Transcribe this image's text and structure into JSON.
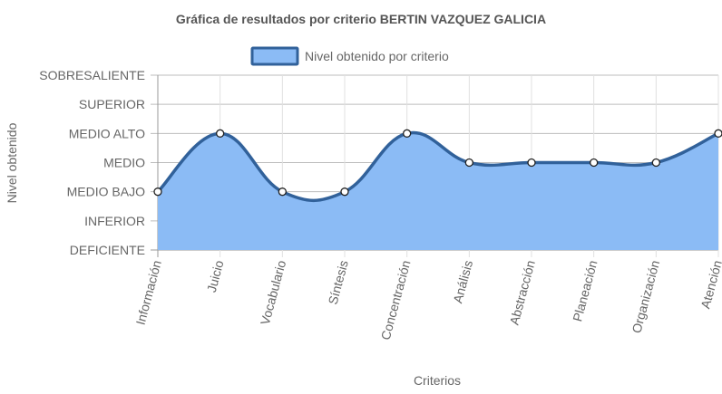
{
  "chart_data": {
    "type": "area",
    "title": "Gráfica de resultados por criterio BERTIN VAZQUEZ GALICIA",
    "xlabel": "Criterios",
    "ylabel": "Nivel obtenido",
    "categories": [
      "Información",
      "Juicio",
      "Vocabulario",
      "Síntesis",
      "Concentración",
      "Análisis",
      "Abstracción",
      "Planeación",
      "Organización",
      "Atención"
    ],
    "y_levels": [
      "DEFICIENTE",
      "INFERIOR",
      "MEDIO BAJO",
      "MEDIO",
      "MEDIO ALTO",
      "SUPERIOR",
      "SOBRESALIENTE"
    ],
    "series": [
      {
        "name": "Nivel obtenido por criterio",
        "values": [
          "MEDIO BAJO",
          "MEDIO ALTO",
          "MEDIO BAJO",
          "MEDIO BAJO",
          "MEDIO ALTO",
          "MEDIO",
          "MEDIO",
          "MEDIO",
          "MEDIO",
          "MEDIO ALTO"
        ]
      }
    ],
    "grid": true,
    "legend_position": "top",
    "colors": {
      "fill": "#8bbbf5",
      "line": "#31619a",
      "point_fill": "#ffffff",
      "point_stroke": "#222222",
      "grid": "#d9d9d9",
      "axis": "#888888"
    }
  }
}
